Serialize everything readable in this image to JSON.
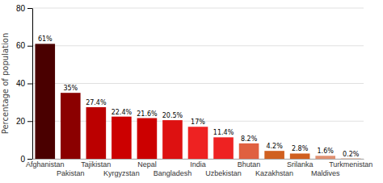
{
  "chart_data": {
    "type": "bar",
    "categories": [
      "Afghanistan",
      "Pakistan",
      "Tajikistan",
      "Kyrgyzstan",
      "Nepal",
      "Bangladesh",
      "India",
      "Uzbekistan",
      "Bhutan",
      "Kazakhstan",
      "Srilanka",
      "Maldives",
      "Turkmenistan"
    ],
    "values": [
      61,
      35,
      27.4,
      22.4,
      21.6,
      20.5,
      17,
      11.4,
      8.2,
      4.2,
      2.8,
      1.6,
      0.2
    ],
    "value_labels": [
      "61%",
      "35%",
      "27.4%",
      "22.4%",
      "21.6%",
      "20.5%",
      "17%",
      "11.4%",
      "8.2%",
      "4.2%",
      "2.8%",
      "1.6%",
      "0.2%"
    ],
    "data_labels": true,
    "colors": [
      "#4a0000",
      "#8b0000",
      "#bb0000",
      "#cc0000",
      "#cc0000",
      "#dd1111",
      "#ee2222",
      "#ee2222",
      "#e06040",
      "#d06020",
      "#d06020",
      "#e09070",
      "#e0a080"
    ],
    "y_label": "Percentage of population",
    "ylim": [
      0,
      80
    ],
    "yticks": [
      0,
      20,
      40,
      60,
      80
    ],
    "grid": true
  }
}
